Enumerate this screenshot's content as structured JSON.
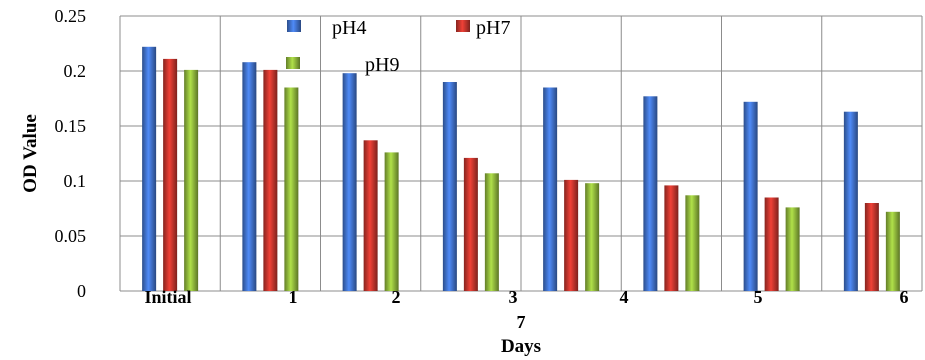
{
  "chart_data": {
    "type": "bar",
    "categories": [
      "Initial",
      "1",
      "2",
      "3",
      "4",
      "5",
      "6",
      "7"
    ],
    "series": [
      {
        "name": "pH4",
        "color": "#3f6fc6",
        "values": [
          0.222,
          0.208,
          0.198,
          0.19,
          0.185,
          0.177,
          0.172,
          0.163
        ]
      },
      {
        "name": "pH7",
        "color": "#c0342c",
        "values": [
          0.211,
          0.201,
          0.137,
          0.121,
          0.101,
          0.096,
          0.085,
          0.08
        ]
      },
      {
        "name": "pH9",
        "color": "#8db43a",
        "values": [
          0.201,
          0.185,
          0.126,
          0.107,
          0.098,
          0.087,
          0.076,
          0.072
        ]
      }
    ],
    "ylabel": "OD Value",
    "xlabel": "Days",
    "ylim": [
      0,
      0.25
    ],
    "yticks": [
      "0",
      "0.05",
      "0.1",
      "0.15",
      "0.2",
      "0.25"
    ],
    "grid": true,
    "legend_placement": "top-center"
  }
}
